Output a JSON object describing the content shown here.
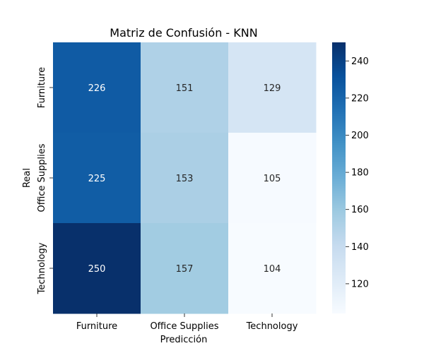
{
  "chart_data": {
    "type": "heatmap",
    "title": "Matriz de Confusión - KNN",
    "xlabel": "Predicción",
    "ylabel": "Real",
    "x_categories": [
      "Furniture",
      "Office Supplies",
      "Technology"
    ],
    "y_categories": [
      "Furniture",
      "Office Supplies",
      "Technology"
    ],
    "values": [
      [
        226,
        151,
        129
      ],
      [
        225,
        153,
        105
      ],
      [
        250,
        157,
        104
      ]
    ],
    "colorbar": {
      "colormap": "Blues",
      "range": [
        104,
        250
      ],
      "ticks": [
        120,
        140,
        160,
        180,
        200,
        220,
        240
      ]
    }
  }
}
